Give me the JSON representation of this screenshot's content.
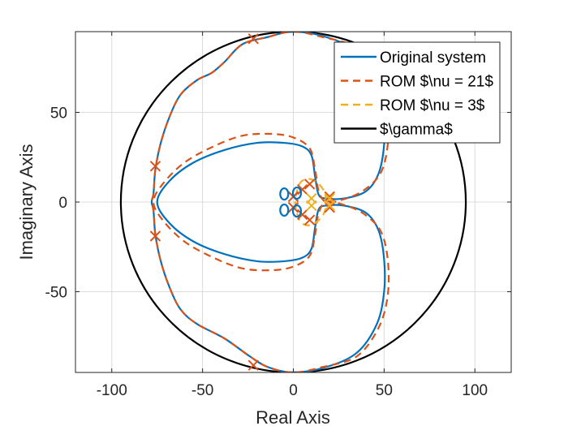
{
  "chart_data": {
    "type": "line",
    "xlabel": "Real Axis",
    "ylabel": "Imaginary Axis",
    "xlim": [
      -120,
      120
    ],
    "ylim": [
      -95,
      95
    ],
    "xticks": [
      -100,
      -50,
      0,
      50,
      100
    ],
    "xtick_labels": [
      "-100",
      "-50",
      "0",
      "50",
      "100"
    ],
    "yticks": [
      -50,
      0,
      50
    ],
    "ytick_labels": [
      "-50",
      "0",
      "50"
    ],
    "grid": true,
    "legend_position": "top-right",
    "series": [
      {
        "name": "Original system",
        "color": "#0072BD",
        "style": "solid",
        "points": [
          [
            0,
            95
          ],
          [
            18,
            92
          ],
          [
            35,
            84
          ],
          [
            46,
            68
          ],
          [
            50,
            50
          ],
          [
            50,
            32
          ],
          [
            47,
            16
          ],
          [
            40,
            6
          ],
          [
            28,
            2
          ],
          [
            18,
            2
          ],
          [
            14,
            4
          ],
          [
            12,
            14
          ],
          [
            10,
            26
          ],
          [
            5,
            31
          ],
          [
            -5,
            33
          ],
          [
            -20,
            33
          ],
          [
            -38,
            29
          ],
          [
            -55,
            22
          ],
          [
            -68,
            12
          ],
          [
            -75,
            0
          ],
          [
            -68,
            -12
          ],
          [
            -55,
            -22
          ],
          [
            -38,
            -29
          ],
          [
            -20,
            -33
          ],
          [
            -5,
            -33
          ],
          [
            5,
            -31
          ],
          [
            10,
            -26
          ],
          [
            12,
            -14
          ],
          [
            14,
            -4
          ],
          [
            18,
            -2
          ],
          [
            28,
            -2
          ],
          [
            40,
            -6
          ],
          [
            47,
            -16
          ],
          [
            50,
            -32
          ],
          [
            50,
            -50
          ],
          [
            46,
            -68
          ],
          [
            35,
            -84
          ],
          [
            18,
            -92
          ],
          [
            0,
            -95
          ],
          [
            -14,
            -92
          ],
          [
            -24,
            -86
          ],
          [
            -38,
            -76
          ],
          [
            -53,
            -68
          ],
          [
            -62,
            -60
          ],
          [
            -68,
            -48
          ],
          [
            -73,
            -33
          ],
          [
            -76,
            -18
          ],
          [
            -77,
            -5
          ],
          [
            -78,
            0
          ],
          [
            -77,
            5
          ],
          [
            -76,
            18
          ],
          [
            -73,
            33
          ],
          [
            -68,
            48
          ],
          [
            -62,
            60
          ],
          [
            -53,
            68
          ],
          [
            -45,
            72
          ],
          [
            -38,
            78
          ],
          [
            -28,
            88
          ],
          [
            -14,
            92
          ],
          [
            0,
            95
          ]
        ]
      },
      {
        "name": "ROM $\\nu = 21$",
        "color": "#D95319",
        "style": "dashed",
        "points": [
          [
            0,
            95
          ],
          [
            16,
            92
          ],
          [
            35,
            86
          ],
          [
            47,
            70
          ],
          [
            52,
            52
          ],
          [
            52,
            32
          ],
          [
            48,
            16
          ],
          [
            38,
            6
          ],
          [
            26,
            1
          ],
          [
            18,
            0
          ],
          [
            14,
            6
          ],
          [
            12,
            18
          ],
          [
            9,
            30
          ],
          [
            0,
            36
          ],
          [
            -12,
            38
          ],
          [
            -28,
            37
          ],
          [
            -44,
            31
          ],
          [
            -60,
            22
          ],
          [
            -72,
            10
          ],
          [
            -77,
            0
          ],
          [
            -72,
            -10
          ],
          [
            -60,
            -22
          ],
          [
            -44,
            -31
          ],
          [
            -28,
            -37
          ],
          [
            -12,
            -38
          ],
          [
            0,
            -36
          ],
          [
            9,
            -30
          ],
          [
            12,
            -18
          ],
          [
            14,
            -6
          ],
          [
            18,
            0
          ],
          [
            26,
            -1
          ],
          [
            38,
            -6
          ],
          [
            48,
            -16
          ],
          [
            52,
            -32
          ],
          [
            52,
            -52
          ],
          [
            47,
            -70
          ],
          [
            35,
            -86
          ],
          [
            16,
            -92
          ],
          [
            0,
            -95
          ],
          [
            -14,
            -92
          ],
          [
            -24,
            -86
          ],
          [
            -38,
            -76
          ],
          [
            -53,
            -68
          ],
          [
            -62,
            -60
          ],
          [
            -68,
            -48
          ],
          [
            -73,
            -33
          ],
          [
            -76,
            -18
          ],
          [
            -77,
            -5
          ],
          [
            -78,
            0
          ],
          [
            -77,
            5
          ],
          [
            -76,
            18
          ],
          [
            -73,
            33
          ],
          [
            -68,
            48
          ],
          [
            -62,
            60
          ],
          [
            -53,
            68
          ],
          [
            -45,
            72
          ],
          [
            -38,
            78
          ],
          [
            -28,
            88
          ],
          [
            -14,
            92
          ],
          [
            0,
            95
          ]
        ],
        "poles": [
          [
            -22,
            91
          ],
          [
            -76,
            20
          ],
          [
            -76,
            -19
          ],
          [
            -22,
            -91
          ],
          [
            20,
            3
          ],
          [
            20,
            -3
          ],
          [
            9,
            10
          ],
          [
            9,
            -10
          ],
          [
            5,
            7
          ],
          [
            5,
            -7
          ],
          [
            0,
            3
          ],
          [
            0,
            -3
          ]
        ]
      },
      {
        "name": "ROM $\\nu = 3$",
        "color": "#EDB120",
        "style": "dashed",
        "points": [
          [
            18,
            0
          ],
          [
            17,
            6
          ],
          [
            13,
            11
          ],
          [
            8,
            13
          ],
          [
            4,
            11
          ],
          [
            2,
            6
          ],
          [
            1,
            0
          ],
          [
            2,
            -6
          ],
          [
            4,
            -11
          ],
          [
            8,
            -13
          ],
          [
            13,
            -11
          ],
          [
            17,
            -6
          ],
          [
            18,
            0
          ]
        ],
        "poles": [
          [
            20,
            2
          ],
          [
            20,
            -2
          ],
          [
            10,
            2
          ],
          [
            10,
            -2
          ]
        ]
      },
      {
        "name": "$\\gamma$",
        "color": "#000000",
        "style": "solid",
        "circle": {
          "center": [
            0,
            0
          ],
          "radius": 95
        }
      }
    ]
  }
}
